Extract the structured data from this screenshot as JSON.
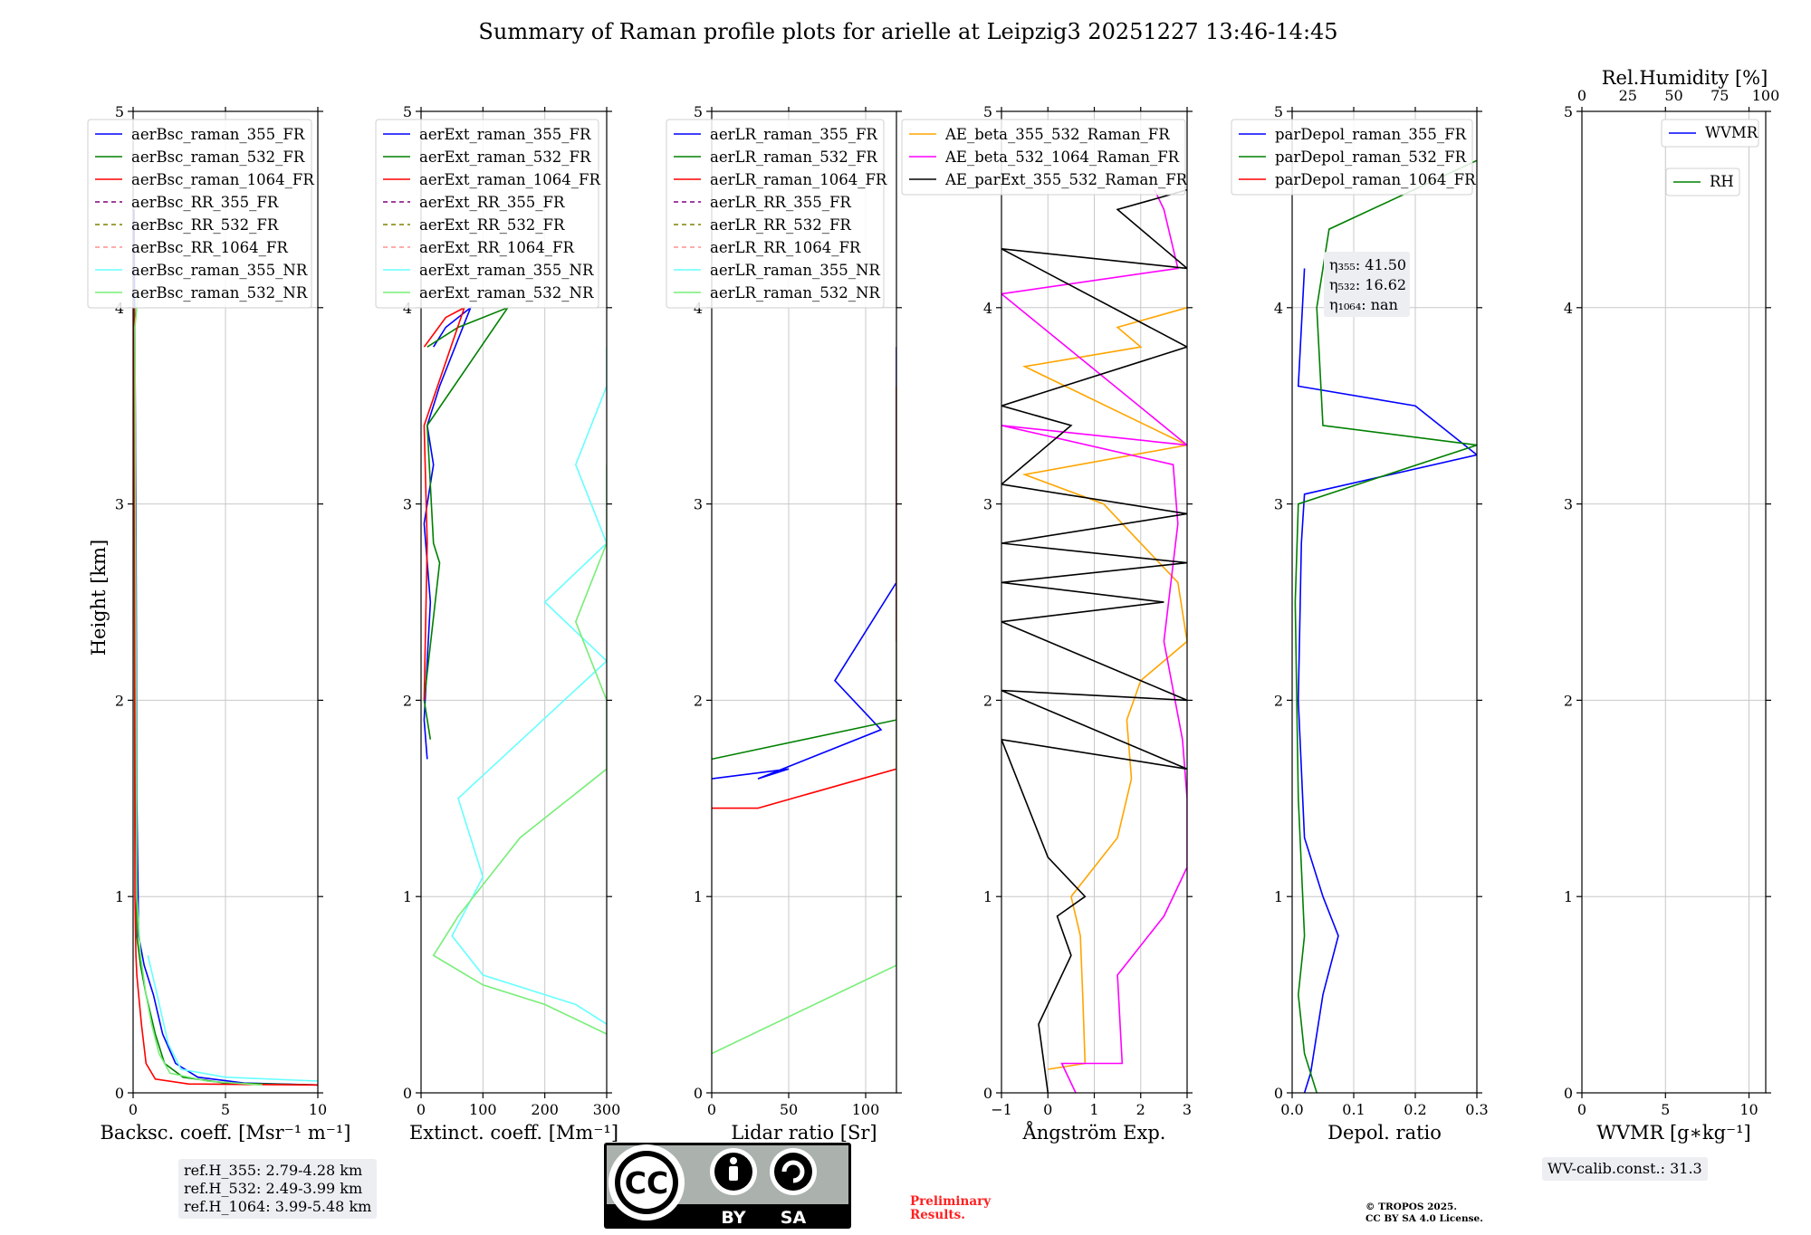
{
  "figure": {
    "title": "Summary of Raman profile plots for arielle at Leipzig3 20251227 13:46-14:45",
    "ylabel": "Height [km]",
    "ylim": [
      0,
      5
    ],
    "yticks": [
      0,
      1,
      2,
      3,
      4,
      5
    ],
    "colors": {
      "blue": "#0000ff",
      "green": "#008000",
      "red": "#ff0000",
      "purple": "#800080",
      "olive": "#808000",
      "salmon": "#ff9090",
      "cyan": "#66ffff",
      "lightgreen": "#77ee77",
      "orange": "#ffa500",
      "magenta": "#ff00ff",
      "black": "#000000"
    }
  },
  "chart_data": [
    {
      "type": "line",
      "name": "backscatter",
      "xlabel": "Backsc. coeff. [Msr⁻¹ m⁻¹]",
      "xlim": [
        0,
        10
      ],
      "xticks": [
        "0",
        "5",
        "10"
      ],
      "legend": [
        "aerBsc_raman_355_FR",
        "aerBsc_raman_532_FR",
        "aerBsc_raman_1064_FR",
        "aerBsc_RR_355_FR",
        "aerBsc_RR_532_FR",
        "aerBsc_RR_1064_FR",
        "aerBsc_raman_355_NR",
        "aerBsc_raman_532_NR"
      ],
      "series": [
        {
          "name": "aerBsc_raman_355_FR",
          "color": "blue",
          "points": [
            [
              10,
              0.04
            ],
            [
              6,
              0.05
            ],
            [
              3.5,
              0.08
            ],
            [
              2.3,
              0.15
            ],
            [
              1.6,
              0.3
            ],
            [
              1.1,
              0.5
            ],
            [
              0.6,
              0.65
            ],
            [
              0.3,
              0.8
            ],
            [
              0.2,
              1.5
            ],
            [
              0.15,
              3
            ],
            [
              0.05,
              4.5
            ]
          ]
        },
        {
          "name": "aerBsc_raman_532_FR",
          "color": "green",
          "points": [
            [
              10,
              0.04
            ],
            [
              5,
              0.05
            ],
            [
              2.7,
              0.08
            ],
            [
              1.7,
              0.15
            ],
            [
              1.2,
              0.3
            ],
            [
              0.7,
              0.5
            ],
            [
              0.4,
              0.65
            ],
            [
              0.2,
              0.8
            ],
            [
              0.12,
              2
            ],
            [
              0.08,
              4
            ]
          ]
        },
        {
          "name": "aerBsc_raman_1064_FR",
          "color": "red",
          "points": [
            [
              10,
              0.04
            ],
            [
              3,
              0.045
            ],
            [
              1.2,
              0.07
            ],
            [
              0.7,
              0.15
            ],
            [
              0.45,
              0.35
            ],
            [
              0.3,
              0.5
            ],
            [
              0.2,
              0.6
            ],
            [
              0.15,
              0.7
            ],
            [
              0.1,
              1
            ],
            [
              0.05,
              4
            ]
          ]
        },
        {
          "name": "aerBsc_raman_355_NR",
          "color": "cyan",
          "points": [
            [
              10,
              0.06
            ],
            [
              5,
              0.08
            ],
            [
              2.6,
              0.12
            ],
            [
              1.9,
              0.25
            ],
            [
              1.3,
              0.5
            ],
            [
              0.8,
              0.7
            ]
          ]
        },
        {
          "name": "aerBsc_raman_532_NR",
          "color": "lightgreen",
          "points": [
            [
              7,
              0.04
            ],
            [
              4,
              0.06
            ],
            [
              2,
              0.1
            ],
            [
              1.4,
              0.2
            ],
            [
              1,
              0.35
            ],
            [
              0.7,
              0.5
            ],
            [
              0.4,
              0.7
            ],
            [
              0.2,
              1
            ],
            [
              0.1,
              3.9
            ],
            [
              0.3,
              4.1
            ]
          ]
        }
      ]
    },
    {
      "type": "line",
      "name": "extinction",
      "xlabel": "Extinct. coeff. [Mm⁻¹]",
      "xlim": [
        0,
        300
      ],
      "xticks": [
        "0",
        "100",
        "200",
        "300"
      ],
      "legend": [
        "aerExt_raman_355_FR",
        "aerExt_raman_532_FR",
        "aerExt_raman_1064_FR",
        "aerExt_RR_355_FR",
        "aerExt_RR_532_FR",
        "aerExt_RR_1064_FR",
        "aerExt_raman_355_NR",
        "aerExt_raman_532_NR"
      ],
      "series": [
        {
          "name": "aerExt_raman_355_FR",
          "color": "blue",
          "points": [
            [
              20,
              3.8
            ],
            [
              40,
              3.9
            ],
            [
              80,
              4.0
            ],
            [
              30,
              3.6
            ],
            [
              10,
              3.4
            ],
            [
              20,
              3.2
            ],
            [
              5,
              2.9
            ],
            [
              15,
              2.5
            ],
            [
              10,
              2.2
            ],
            [
              5,
              1.9
            ],
            [
              10,
              1.7
            ]
          ]
        },
        {
          "name": "aerExt_raman_532_FR",
          "color": "green",
          "points": [
            [
              10,
              3.8
            ],
            [
              60,
              3.9
            ],
            [
              140,
              4.0
            ],
            [
              10,
              3.4
            ],
            [
              20,
              2.8
            ],
            [
              30,
              2.7
            ],
            [
              5,
              2.0
            ],
            [
              15,
              1.8
            ]
          ]
        },
        {
          "name": "aerExt_raman_1064_FR",
          "color": "red",
          "points": [
            [
              5,
              3.8
            ],
            [
              40,
              3.95
            ],
            [
              70,
              4.0
            ],
            [
              5,
              3.4
            ],
            [
              10,
              2.8
            ],
            [
              5,
              2.0
            ]
          ]
        },
        {
          "name": "aerExt_raman_355_NR",
          "color": "cyan",
          "points": [
            [
              300,
              0.35
            ],
            [
              250,
              0.45
            ],
            [
              100,
              0.6
            ],
            [
              50,
              0.8
            ],
            [
              100,
              1.1
            ],
            [
              60,
              1.5
            ],
            [
              300,
              2.2
            ],
            [
              200,
              2.5
            ],
            [
              300,
              2.8
            ],
            [
              250,
              3.2
            ],
            [
              300,
              3.6
            ],
            [
              300,
              3.8
            ]
          ]
        },
        {
          "name": "aerExt_raman_532_NR",
          "color": "lightgreen",
          "points": [
            [
              300,
              0.3
            ],
            [
              200,
              0.45
            ],
            [
              100,
              0.55
            ],
            [
              20,
              0.7
            ],
            [
              60,
              0.9
            ],
            [
              160,
              1.3
            ],
            [
              300,
              1.65
            ],
            [
              300,
              2.0
            ],
            [
              250,
              2.4
            ],
            [
              300,
              2.8
            ],
            [
              300,
              3.2
            ]
          ]
        }
      ]
    },
    {
      "type": "line",
      "name": "lidar_ratio",
      "xlabel": "Lidar ratio [Sr]",
      "xlim": [
        0,
        120
      ],
      "xticks": [
        "0",
        "50",
        "100"
      ],
      "legend": [
        "aerLR_raman_355_FR",
        "aerLR_raman_532_FR",
        "aerLR_raman_1064_FR",
        "aerLR_RR_355_FR",
        "aerLR_RR_532_FR",
        "aerLR_RR_1064_FR",
        "aerLR_raman_355_NR",
        "aerLR_raman_532_NR"
      ],
      "series": [
        {
          "name": "aerLR_raman_355_FR",
          "color": "blue",
          "points": [
            [
              0,
              1.6
            ],
            [
              50,
              1.65
            ],
            [
              30,
              1.6
            ],
            [
              110,
              1.85
            ],
            [
              80,
              2.1
            ],
            [
              120,
              2.6
            ],
            [
              120,
              2.8
            ],
            [
              120,
              3.4
            ],
            [
              120,
              3.8
            ]
          ]
        },
        {
          "name": "aerLR_raman_532_FR",
          "color": "green",
          "points": [
            [
              0,
              1.7
            ],
            [
              120,
              1.9
            ],
            [
              120,
              2.4
            ],
            [
              120,
              2.7
            ],
            [
              120,
              3.6
            ]
          ]
        },
        {
          "name": "aerLR_raman_1064_FR",
          "color": "red",
          "points": [
            [
              0,
              1.45
            ],
            [
              30,
              1.45
            ],
            [
              120,
              1.65
            ],
            [
              120,
              2.0
            ],
            [
              120,
              2.5
            ],
            [
              120,
              3.1
            ],
            [
              120,
              3.6
            ]
          ]
        },
        {
          "name": "aerLR_raman_532_NR",
          "color": "lightgreen",
          "points": [
            [
              0,
              0.2
            ],
            [
              120,
              0.65
            ],
            [
              120,
              1.2
            ],
            [
              120,
              1.5
            ],
            [
              120,
              2.3
            ]
          ]
        }
      ]
    },
    {
      "type": "line",
      "name": "angstrom",
      "xlabel": "Ångström Exp.",
      "xlim": [
        -1,
        3
      ],
      "xticks": [
        "−1",
        "0",
        "1",
        "2",
        "3"
      ],
      "legend": [
        "AE_beta_355_532_Raman_FR",
        "AE_beta_532_1064_Raman_FR",
        "AE_parExt_355_532_Raman_FR"
      ],
      "series": [
        {
          "name": "AE_beta_355_532_Raman_FR",
          "color": "orange",
          "points": [
            [
              0,
              0.12
            ],
            [
              0.8,
              0.15
            ],
            [
              0.75,
              0.5
            ],
            [
              0.7,
              0.8
            ],
            [
              0.5,
              1
            ],
            [
              1.5,
              1.3
            ],
            [
              1.8,
              1.6
            ],
            [
              1.7,
              1.9
            ],
            [
              2,
              2.1
            ],
            [
              3,
              2.3
            ],
            [
              2.8,
              2.6
            ],
            [
              1.2,
              3.0
            ],
            [
              -0.5,
              3.15
            ],
            [
              3,
              3.3
            ],
            [
              -0.5,
              3.7
            ],
            [
              2,
              3.8
            ],
            [
              1.5,
              3.9
            ],
            [
              3,
              4.0
            ]
          ]
        },
        {
          "name": "AE_beta_532_1064_Raman_FR",
          "color": "magenta",
          "points": [
            [
              0.6,
              0
            ],
            [
              0.3,
              0.15
            ],
            [
              1.6,
              0.15
            ],
            [
              1.5,
              0.6
            ],
            [
              2.5,
              0.9
            ],
            [
              3,
              1.15
            ],
            [
              3,
              1.5
            ],
            [
              2.9,
              1.8
            ],
            [
              2.5,
              2.3
            ],
            [
              2.8,
              2.9
            ],
            [
              2.7,
              3.2
            ],
            [
              -1,
              3.4
            ],
            [
              3,
              3.3
            ],
            [
              -1,
              4.07
            ],
            [
              2.8,
              4.2
            ],
            [
              2.5,
              4.5
            ],
            [
              2.3,
              4.6
            ]
          ]
        },
        {
          "name": "AE_parExt_355_532_Raman_FR",
          "color": "black",
          "points": [
            [
              0,
              0
            ],
            [
              -0.2,
              0.35
            ],
            [
              0.5,
              0.7
            ],
            [
              0.2,
              0.9
            ],
            [
              0.8,
              1.0
            ],
            [
              0,
              1.2
            ],
            [
              -1,
              1.8
            ],
            [
              3,
              1.65
            ],
            [
              -1,
              2.05
            ],
            [
              3,
              2.0
            ],
            [
              -1,
              2.4
            ],
            [
              2.5,
              2.5
            ],
            [
              -1,
              2.6
            ],
            [
              3,
              2.7
            ],
            [
              -1,
              2.8
            ],
            [
              3,
              2.95
            ],
            [
              -1,
              3.1
            ],
            [
              0.5,
              3.4
            ],
            [
              -1,
              3.5
            ],
            [
              3,
              3.8
            ],
            [
              -1,
              4.3
            ],
            [
              3,
              4.2
            ],
            [
              1.5,
              4.5
            ],
            [
              3,
              4.6
            ]
          ]
        }
      ]
    },
    {
      "type": "line",
      "name": "depolarization",
      "xlabel": "Depol. ratio",
      "xlim": [
        0,
        0.3
      ],
      "xticks": [
        "0.0",
        "0.1",
        "0.2",
        "0.3"
      ],
      "legend": [
        "parDepol_raman_355_FR",
        "parDepol_raman_532_FR",
        "parDepol_raman_1064_FR"
      ],
      "annotations": [
        "η₃₅₅: 41.50",
        "η₅₃₂: 16.62",
        "η₁₀₆₄: nan"
      ],
      "series": [
        {
          "name": "parDepol_raman_355_FR",
          "color": "blue",
          "points": [
            [
              0.02,
              0
            ],
            [
              0.03,
              0.1
            ],
            [
              0.04,
              0.3
            ],
            [
              0.05,
              0.5
            ],
            [
              0.075,
              0.8
            ],
            [
              0.05,
              1
            ],
            [
              0.02,
              1.3
            ],
            [
              0.01,
              2
            ],
            [
              0.015,
              2.8
            ],
            [
              0.02,
              3.05
            ],
            [
              0.3,
              3.25
            ],
            [
              0.2,
              3.5
            ],
            [
              0.01,
              3.6
            ],
            [
              0.02,
              4.2
            ]
          ]
        },
        {
          "name": "parDepol_raman_532_FR",
          "color": "green",
          "points": [
            [
              0.04,
              0
            ],
            [
              0.02,
              0.2
            ],
            [
              0.01,
              0.5
            ],
            [
              0.02,
              0.8
            ],
            [
              0.01,
              1.5
            ],
            [
              0.005,
              2.5
            ],
            [
              0.01,
              3.0
            ],
            [
              0.3,
              3.3
            ],
            [
              0.05,
              3.4
            ],
            [
              0.04,
              4.0
            ],
            [
              0.06,
              4.4
            ],
            [
              0.3,
              4.75
            ]
          ]
        }
      ]
    },
    {
      "type": "line",
      "name": "wvmr",
      "xlabel": "WVMR [g∗kg⁻¹]",
      "xlim": [
        0,
        11
      ],
      "xticks": [
        "0",
        "5",
        "10"
      ],
      "top_xlabel": "Rel.Humidity [%]",
      "top_xticks": [
        "0",
        "25",
        "50",
        "75",
        "100"
      ],
      "legend": [
        "WVMR",
        "RH"
      ],
      "annotations": [
        "WV-calib.const.: 31.3"
      ],
      "series": []
    }
  ],
  "ref_heights": [
    "ref.H_355: 2.79-4.28 km",
    "ref.H_532: 2.49-3.99 km",
    "ref.H_1064: 3.99-5.48 km"
  ],
  "license": {
    "cc": "CC",
    "by": "BY",
    "sa": "SA"
  },
  "preliminary": "Preliminary\nResults.",
  "copyright": "© TROPOS 2025.\nCC BY SA 4.0 License."
}
